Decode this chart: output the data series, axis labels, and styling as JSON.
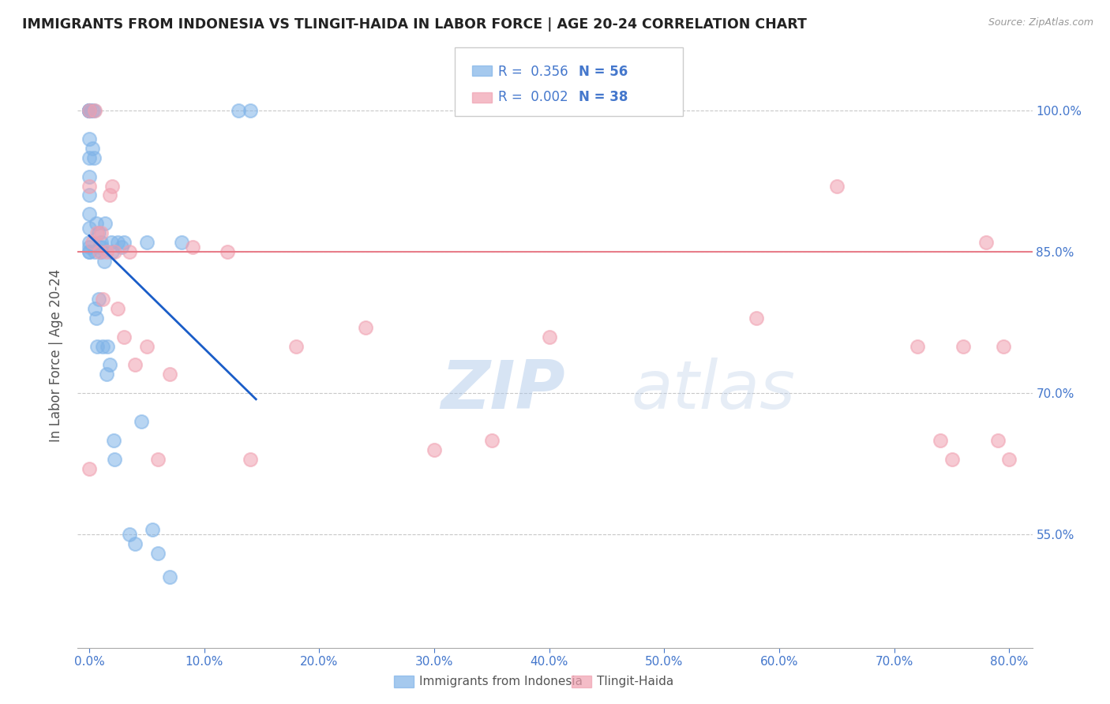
{
  "title": "IMMIGRANTS FROM INDONESIA VS TLINGIT-HAIDA IN LABOR FORCE | AGE 20-24 CORRELATION CHART",
  "source": "Source: ZipAtlas.com",
  "ylabel": "In Labor Force | Age 20-24",
  "x_ticks": [
    0.0,
    10.0,
    20.0,
    30.0,
    40.0,
    50.0,
    60.0,
    70.0,
    80.0
  ],
  "x_tick_labels": [
    "0.0%",
    "10.0%",
    "20.0%",
    "30.0%",
    "40.0%",
    "50.0%",
    "60.0%",
    "70.0%",
    "80.0%"
  ],
  "y_ticks": [
    55.0,
    70.0,
    85.0,
    100.0
  ],
  "y_tick_labels": [
    "55.0%",
    "70.0%",
    "85.0%",
    "100.0%"
  ],
  "xlim": [
    -1.0,
    82.0
  ],
  "ylim": [
    43.0,
    105.0
  ],
  "hline_y": 85.0,
  "hline_color": "#e87d8a",
  "grid_color": "#c8c8c8",
  "background_color": "#ffffff",
  "watermark_text": "ZIPatlas",
  "watermark_color": "#c8d8f0",
  "legend_r1": "R = 0.356",
  "legend_n1": "N = 56",
  "legend_r2": "R = 0.002",
  "legend_n2": "N = 38",
  "color_indonesia": "#7fb3e8",
  "color_tlingit": "#f0a0b0",
  "trendline_color": "#1a5dc8",
  "title_color": "#222222",
  "label_color": "#4477cc",
  "axis_label_color": "#555555",
  "indonesia_x": [
    0.0,
    0.0,
    0.0,
    0.0,
    0.0,
    0.0,
    0.0,
    0.0,
    0.0,
    0.0,
    0.0,
    0.0,
    0.0,
    0.0,
    0.0,
    0.0,
    0.0,
    0.0,
    0.3,
    0.3,
    0.4,
    0.4,
    0.5,
    0.5,
    0.6,
    0.6,
    0.7,
    0.8,
    0.8,
    0.9,
    1.0,
    1.0,
    1.1,
    1.2,
    1.3,
    1.4,
    1.5,
    1.6,
    1.8,
    1.9,
    2.0,
    2.1,
    2.2,
    2.5,
    2.8,
    3.0,
    3.5,
    4.0,
    4.5,
    5.0,
    5.5,
    6.0,
    7.0,
    8.0,
    13.0,
    14.0
  ],
  "indonesia_y": [
    100.0,
    100.0,
    100.0,
    100.0,
    100.0,
    100.0,
    100.0,
    100.0,
    97.0,
    95.0,
    93.0,
    91.0,
    89.0,
    87.5,
    86.0,
    85.5,
    85.0,
    85.0,
    100.0,
    96.0,
    100.0,
    95.0,
    85.0,
    79.0,
    88.0,
    78.0,
    75.0,
    87.0,
    80.0,
    85.5,
    86.0,
    85.0,
    85.5,
    75.0,
    84.0,
    88.0,
    72.0,
    75.0,
    73.0,
    86.0,
    85.0,
    65.0,
    63.0,
    86.0,
    85.5,
    86.0,
    55.0,
    54.0,
    67.0,
    86.0,
    55.5,
    53.0,
    50.5,
    86.0,
    100.0,
    100.0
  ],
  "tlingit_x": [
    0.0,
    0.0,
    0.0,
    0.3,
    0.5,
    0.7,
    0.9,
    1.0,
    1.2,
    1.5,
    1.8,
    2.0,
    2.2,
    2.5,
    3.0,
    3.5,
    4.0,
    5.0,
    6.0,
    7.0,
    9.0,
    12.0,
    14.0,
    18.0,
    24.0,
    30.0,
    35.0,
    40.0,
    58.0,
    65.0,
    72.0,
    74.0,
    75.0,
    76.0,
    78.0,
    79.0,
    79.5,
    80.0
  ],
  "tlingit_y": [
    100.0,
    92.0,
    62.0,
    86.0,
    100.0,
    87.0,
    85.0,
    87.0,
    80.0,
    85.0,
    91.0,
    92.0,
    85.0,
    79.0,
    76.0,
    85.0,
    73.0,
    75.0,
    63.0,
    72.0,
    85.5,
    85.0,
    63.0,
    75.0,
    77.0,
    64.0,
    65.0,
    76.0,
    78.0,
    92.0,
    75.0,
    65.0,
    63.0,
    75.0,
    86.0,
    65.0,
    75.0,
    63.0
  ]
}
